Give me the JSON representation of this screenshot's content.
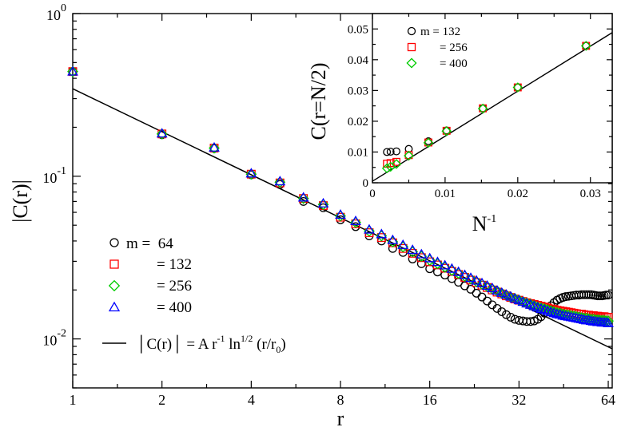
{
  "chart_data": [
    {
      "type": "scatter",
      "xscale": "log2",
      "yscale": "log10",
      "xlim": [
        1,
        66
      ],
      "ylim": [
        0.005,
        1
      ],
      "xlabel": "r",
      "ylabel": "|C(r)|",
      "xticks": [
        1,
        2,
        4,
        8,
        16,
        32,
        64
      ],
      "xtick_labels": [
        "1",
        "2",
        "4",
        "8",
        "16",
        "32",
        "64"
      ],
      "ytick_labels": [
        {
          "base": "10",
          "exp": "0",
          "value": 1
        },
        {
          "base": "10",
          "exp": "-1",
          "value": 0.1
        },
        {
          "base": "10",
          "exp": "-2",
          "value": 0.01
        }
      ],
      "legend": {
        "position": "lower-left",
        "entries": [
          "m =  64",
          "= 132",
          "= 256",
          "= 400"
        ],
        "fit_parts": [
          "│C(r)│ = A r",
          "-1",
          " ln",
          "1/2",
          " (r/r",
          "0",
          ")"
        ]
      },
      "fit_line": {
        "x": [
          1,
          66
        ],
        "y": [
          0.345,
          0.0087
        ],
        "color": "#000000"
      },
      "series": [
        {
          "name": "m = 64",
          "marker": "circle",
          "color": "#000000",
          "x": [
            1,
            2,
            3,
            4,
            5,
            6,
            7,
            8,
            9,
            10,
            11,
            12,
            13,
            14,
            15,
            16,
            17,
            18,
            19,
            20,
            21,
            22,
            23,
            24,
            25,
            26,
            27,
            28,
            29,
            30,
            31,
            32,
            33,
            34,
            35,
            36,
            37,
            38,
            39,
            40,
            41,
            42,
            43,
            44,
            45,
            46,
            47,
            48,
            49,
            50,
            51,
            52,
            53,
            54,
            55,
            56,
            57,
            58,
            59,
            60,
            61,
            62,
            63,
            64
          ],
          "y": [
            0.44,
            0.18,
            0.148,
            0.102,
            0.089,
            0.07,
            0.064,
            0.054,
            0.049,
            0.043,
            0.04,
            0.036,
            0.034,
            0.031,
            0.029,
            0.027,
            0.0258,
            0.0247,
            0.0235,
            0.0223,
            0.0212,
            0.0202,
            0.0191,
            0.0181,
            0.0171,
            0.0162,
            0.0154,
            0.0147,
            0.0141,
            0.0136,
            0.0132,
            0.013,
            0.0129,
            0.0128,
            0.0128,
            0.0129,
            0.0132,
            0.0137,
            0.0144,
            0.0152,
            0.016,
            0.0167,
            0.0173,
            0.0177,
            0.018,
            0.0182,
            0.0183,
            0.0184,
            0.0185,
            0.0186,
            0.0186,
            0.0187,
            0.0187,
            0.0187,
            0.0187,
            0.0187,
            0.0186,
            0.0185,
            0.0184,
            0.0184,
            0.0184,
            0.0185,
            0.0186,
            0.0186
          ]
        },
        {
          "name": "m = 132",
          "marker": "square",
          "color": "#ff0000",
          "x": [
            1,
            2,
            3,
            4,
            5,
            6,
            7,
            8,
            9,
            10,
            11,
            12,
            13,
            14,
            15,
            16,
            17,
            18,
            19,
            20,
            21,
            22,
            23,
            24,
            25,
            26,
            27,
            28,
            29,
            30,
            31,
            32,
            33,
            34,
            35,
            36,
            37,
            38,
            39,
            40,
            41,
            42,
            43,
            44,
            45,
            46,
            47,
            48,
            49,
            50,
            51,
            52,
            53,
            54,
            55,
            56,
            57,
            58,
            59,
            60,
            61,
            62,
            63,
            64
          ],
          "y": [
            0.44,
            0.182,
            0.149,
            0.103,
            0.091,
            0.073,
            0.066,
            0.056,
            0.051,
            0.045,
            0.042,
            0.039,
            0.036,
            0.0336,
            0.0316,
            0.0298,
            0.0285,
            0.0272,
            0.026,
            0.0249,
            0.0239,
            0.023,
            0.0222,
            0.0214,
            0.0207,
            0.02,
            0.0194,
            0.0189,
            0.0184,
            0.018,
            0.0176,
            0.0173,
            0.017,
            0.0167,
            0.0165,
            0.0163,
            0.0161,
            0.0159,
            0.0157,
            0.0155,
            0.0153,
            0.0152,
            0.015,
            0.0149,
            0.0148,
            0.0147,
            0.0146,
            0.0145,
            0.0144,
            0.0143,
            0.0142,
            0.0142,
            0.0141,
            0.014,
            0.014,
            0.0139,
            0.0139,
            0.0138,
            0.0138,
            0.0137,
            0.0137,
            0.0137,
            0.0136,
            0.0136
          ]
        },
        {
          "name": "m = 256",
          "marker": "diamond",
          "color": "#00cc00",
          "x": [
            1,
            2,
            3,
            4,
            5,
            6,
            7,
            8,
            9,
            10,
            11,
            12,
            13,
            14,
            15,
            16,
            17,
            18,
            19,
            20,
            21,
            22,
            23,
            24,
            25,
            26,
            27,
            28,
            29,
            30,
            31,
            32,
            33,
            34,
            35,
            36,
            37,
            38,
            39,
            40,
            41,
            42,
            43,
            44,
            45,
            46,
            47,
            48,
            49,
            50,
            51,
            52,
            53,
            54,
            55,
            56,
            57,
            58,
            59,
            60,
            61,
            62,
            63,
            64
          ],
          "y": [
            0.44,
            0.182,
            0.149,
            0.103,
            0.092,
            0.073,
            0.067,
            0.057,
            0.052,
            0.046,
            0.043,
            0.0395,
            0.0368,
            0.0343,
            0.0322,
            0.0305,
            0.029,
            0.0276,
            0.0264,
            0.0253,
            0.0243,
            0.0234,
            0.0225,
            0.0217,
            0.021,
            0.0203,
            0.0197,
            0.0191,
            0.0186,
            0.0181,
            0.0177,
            0.0173,
            0.0169,
            0.0166,
            0.0163,
            0.016,
            0.0157,
            0.0155,
            0.0153,
            0.0151,
            0.0149,
            0.0147,
            0.0145,
            0.0144,
            0.0142,
            0.0141,
            0.014,
            0.0139,
            0.0138,
            0.0137,
            0.0136,
            0.0135,
            0.0134,
            0.0134,
            0.0133,
            0.0132,
            0.0132,
            0.0131,
            0.0131,
            0.013,
            0.013,
            0.013,
            0.0129,
            0.0129
          ]
        },
        {
          "name": "m = 400",
          "marker": "triangle",
          "color": "#0000ff",
          "x": [
            1,
            2,
            3,
            4,
            5,
            6,
            7,
            8,
            9,
            10,
            11,
            12,
            13,
            14,
            15,
            16,
            17,
            18,
            19,
            20,
            21,
            22,
            23,
            24,
            25,
            26,
            27,
            28,
            29,
            30,
            31,
            32,
            33,
            34,
            35,
            36,
            37,
            38,
            39,
            40,
            41,
            42,
            43,
            44,
            45,
            46,
            47,
            48,
            49,
            50,
            51,
            52,
            53,
            54,
            55,
            56,
            57,
            58,
            59,
            60,
            61,
            62,
            63,
            64
          ],
          "y": [
            0.44,
            0.183,
            0.15,
            0.104,
            0.093,
            0.074,
            0.068,
            0.058,
            0.053,
            0.047,
            0.044,
            0.0405,
            0.0378,
            0.0352,
            0.0331,
            0.0313,
            0.0297,
            0.0283,
            0.027,
            0.0258,
            0.0247,
            0.0237,
            0.0228,
            0.022,
            0.0212,
            0.0205,
            0.0198,
            0.0192,
            0.0187,
            0.0182,
            0.0177,
            0.0173,
            0.0169,
            0.0165,
            0.0162,
            0.0159,
            0.0156,
            0.0153,
            0.0151,
            0.0148,
            0.0146,
            0.0144,
            0.0142,
            0.0141,
            0.0139,
            0.0138,
            0.0137,
            0.0136,
            0.0135,
            0.0134,
            0.0133,
            0.0132,
            0.0131,
            0.013,
            0.013,
            0.0129,
            0.0128,
            0.0128,
            0.0127,
            0.0127,
            0.0126,
            0.0126,
            0.0126,
            0.0125
          ]
        }
      ]
    },
    {
      "type": "scatter",
      "inset": true,
      "xlim": [
        0,
        0.033
      ],
      "ylim": [
        0,
        0.055
      ],
      "xlabel": "N",
      "xlabel_exp": "-1",
      "ylabel": "C(r=N/2)",
      "xticks": [
        0,
        0.01,
        0.02,
        0.03
      ],
      "xtick_labels": [
        "0",
        "0.01",
        "0.02",
        "0.03"
      ],
      "yticks": [
        0,
        0.01,
        0.02,
        0.03,
        0.04,
        0.05
      ],
      "ytick_labels": [
        "0",
        "0.01",
        "0.02",
        "0.03",
        "0.04",
        "0.05"
      ],
      "legend": {
        "position": "top-left",
        "entries": [
          "m = 132",
          "= 256",
          "= 400"
        ]
      },
      "fit_line": {
        "x": [
          0,
          0.033
        ],
        "y": [
          0.0005,
          0.0488
        ],
        "color": "#000000"
      },
      "series": [
        {
          "name": "m = 132",
          "marker": "circle",
          "color": "#000000",
          "x": [
            0.002,
            0.0025,
            0.0033,
            0.005,
            0.0077,
            0.0102,
            0.0152,
            0.02,
            0.0294
          ],
          "y": [
            0.01,
            0.0101,
            0.0102,
            0.011,
            0.0135,
            0.017,
            0.0242,
            0.031,
            0.0445
          ]
        },
        {
          "name": "m = 256",
          "marker": "square",
          "color": "#ff0000",
          "x": [
            0.002,
            0.0025,
            0.0033,
            0.005,
            0.0077,
            0.0102,
            0.0152,
            0.02,
            0.0294
          ],
          "y": [
            0.0062,
            0.0064,
            0.0068,
            0.009,
            0.0131,
            0.0169,
            0.0242,
            0.031,
            0.0445
          ]
        },
        {
          "name": "m = 400",
          "marker": "diamond",
          "color": "#00cc00",
          "x": [
            0.002,
            0.0025,
            0.0033,
            0.005,
            0.0077,
            0.0102,
            0.0152,
            0.02,
            0.0294
          ],
          "y": [
            0.0047,
            0.0052,
            0.0061,
            0.0088,
            0.013,
            0.0168,
            0.0241,
            0.031,
            0.0445
          ]
        }
      ]
    }
  ]
}
